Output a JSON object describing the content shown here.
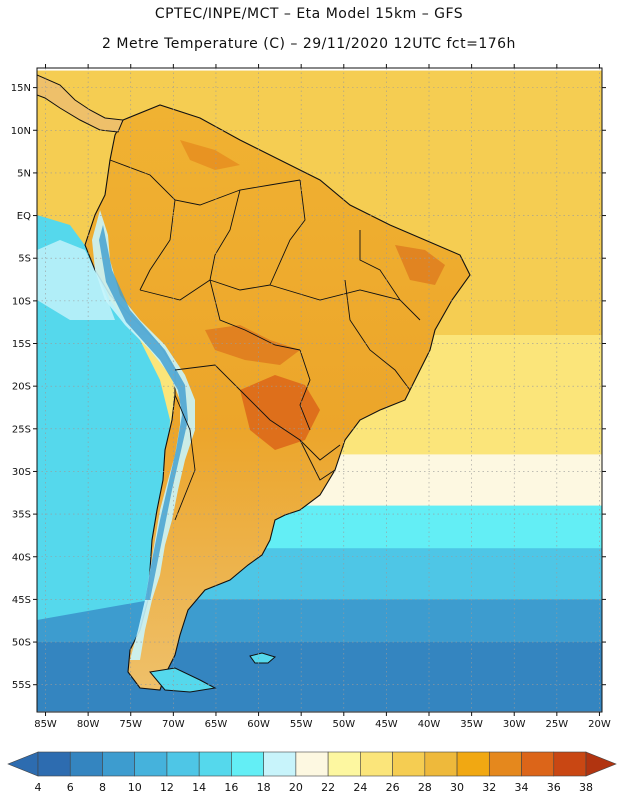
{
  "header": {
    "line1": "CPTEC/INPE/MCT –  Eta Model 15km – GFS",
    "line2": "2 Metre Temperature (C) – 29/11/2020 12UTC fct=176h"
  },
  "map": {
    "lat_ticks": [
      "15N",
      "10N",
      "5N",
      "EQ",
      "5S",
      "10S",
      "15S",
      "20S",
      "25S",
      "30S",
      "35S",
      "40S",
      "45S",
      "50S",
      "55S"
    ],
    "lon_ticks": [
      "85W",
      "80W",
      "75W",
      "70W",
      "65W",
      "60W",
      "55W",
      "50W",
      "45W",
      "40W",
      "35W",
      "30W",
      "25W",
      "20W"
    ],
    "ocean_bands": [
      {
        "lat_range": [
          17,
          2
        ],
        "temp_c": 26
      },
      {
        "lat_range": [
          2,
          -14
        ],
        "temp_c": 27
      },
      {
        "lat_range": [
          -14,
          -28
        ],
        "temp_c": 24
      },
      {
        "lat_range": [
          -28,
          -34
        ],
        "temp_c": 20
      },
      {
        "lat_range": [
          -34,
          -39
        ],
        "temp_c": 17
      },
      {
        "lat_range": [
          -39,
          -45
        ],
        "temp_c": 13
      },
      {
        "lat_range": [
          -45,
          -50
        ],
        "temp_c": 9
      },
      {
        "lat_range": [
          -50,
          -58
        ],
        "temp_c": 6
      }
    ],
    "pacific_temp_c": 15,
    "land_temp_c": 30,
    "hot_spot_temp_c": 35,
    "andes_temp_c": 14
  },
  "colorbar": {
    "labels": [
      "4",
      "6",
      "8",
      "10",
      "12",
      "14",
      "16",
      "18",
      "20",
      "22",
      "24",
      "26",
      "28",
      "30",
      "32",
      "34",
      "36",
      "38"
    ],
    "colors": [
      "#2d6cb0",
      "#3485c0",
      "#3d9ccf",
      "#45b2dc",
      "#4ec6e6",
      "#55d8ec",
      "#63eef5",
      "#c8f4fb",
      "#fdf8e1",
      "#fdf7a0",
      "#fbe57a",
      "#f5cd52",
      "#eeb93b",
      "#f1a812",
      "#e5881d",
      "#dc6519",
      "#c94713",
      "#b13410"
    ]
  }
}
